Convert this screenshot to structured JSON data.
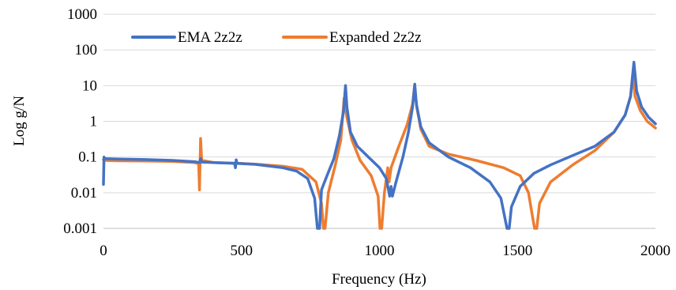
{
  "chart_data": {
    "type": "line",
    "title": "",
    "xlabel": "Frequency (Hz)",
    "ylabel": "Log g/N",
    "y_scale": "log",
    "xlim": [
      0,
      2000
    ],
    "ylim": [
      0.001,
      1000
    ],
    "x_ticks": [
      0,
      500,
      1000,
      1500,
      2000
    ],
    "x_tick_labels": [
      "0",
      "500",
      "1000",
      "1500",
      "2000"
    ],
    "y_ticks": [
      0.001,
      0.01,
      0.1,
      1,
      10,
      100,
      1000
    ],
    "y_tick_labels": [
      "0.001",
      "0.01",
      "0.1",
      "1",
      "10",
      "100",
      "1000"
    ],
    "grid": "horizontal",
    "legend_position": "top-left",
    "series": [
      {
        "name": "EMA 2z2z",
        "color": "#4472c4",
        "points": [
          [
            0,
            0.017
          ],
          [
            2,
            0.1
          ],
          [
            5,
            0.09
          ],
          [
            50,
            0.088
          ],
          [
            150,
            0.085
          ],
          [
            250,
            0.08
          ],
          [
            330,
            0.074
          ],
          [
            348,
            0.07
          ],
          [
            352,
            0.09
          ],
          [
            356,
            0.072
          ],
          [
            400,
            0.07
          ],
          [
            475,
            0.066
          ],
          [
            478,
            0.05
          ],
          [
            481,
            0.083
          ],
          [
            484,
            0.066
          ],
          [
            550,
            0.062
          ],
          [
            650,
            0.05
          ],
          [
            700,
            0.04
          ],
          [
            740,
            0.025
          ],
          [
            765,
            0.007
          ],
          [
            775,
            0.001
          ],
          [
            783,
            0.001
          ],
          [
            790,
            0.012
          ],
          [
            810,
            0.03
          ],
          [
            835,
            0.09
          ],
          [
            855,
            0.4
          ],
          [
            870,
            2
          ],
          [
            877,
            10
          ],
          [
            882,
            2.5
          ],
          [
            895,
            0.5
          ],
          [
            920,
            0.2
          ],
          [
            960,
            0.1
          ],
          [
            1000,
            0.05
          ],
          [
            1025,
            0.025
          ],
          [
            1037,
            0.008
          ],
          [
            1042,
            0.015
          ],
          [
            1047,
            0.008
          ],
          [
            1060,
            0.02
          ],
          [
            1085,
            0.1
          ],
          [
            1105,
            0.5
          ],
          [
            1120,
            2.5
          ],
          [
            1128,
            11
          ],
          [
            1134,
            3
          ],
          [
            1150,
            0.7
          ],
          [
            1180,
            0.25
          ],
          [
            1250,
            0.1
          ],
          [
            1330,
            0.05
          ],
          [
            1400,
            0.02
          ],
          [
            1440,
            0.007
          ],
          [
            1462,
            0.001
          ],
          [
            1470,
            0.001
          ],
          [
            1478,
            0.004
          ],
          [
            1510,
            0.015
          ],
          [
            1560,
            0.035
          ],
          [
            1620,
            0.06
          ],
          [
            1700,
            0.11
          ],
          [
            1780,
            0.2
          ],
          [
            1850,
            0.5
          ],
          [
            1890,
            1.5
          ],
          [
            1910,
            5
          ],
          [
            1922,
            45
          ],
          [
            1932,
            7
          ],
          [
            1950,
            2.5
          ],
          [
            1975,
            1.3
          ],
          [
            2000,
            0.85
          ]
        ]
      },
      {
        "name": "Expanded 2z2z",
        "color": "#ed7d31",
        "points": [
          [
            0,
            0.085
          ],
          [
            5,
            0.08
          ],
          [
            50,
            0.078
          ],
          [
            150,
            0.077
          ],
          [
            250,
            0.075
          ],
          [
            330,
            0.07
          ],
          [
            345,
            0.065
          ],
          [
            348,
            0.012
          ],
          [
            352,
            0.33
          ],
          [
            356,
            0.08
          ],
          [
            400,
            0.07
          ],
          [
            480,
            0.067
          ],
          [
            550,
            0.063
          ],
          [
            650,
            0.055
          ],
          [
            720,
            0.045
          ],
          [
            770,
            0.02
          ],
          [
            790,
            0.005
          ],
          [
            797,
            0.001
          ],
          [
            803,
            0.001
          ],
          [
            815,
            0.01
          ],
          [
            840,
            0.06
          ],
          [
            860,
            0.3
          ],
          [
            872,
            4.5
          ],
          [
            880,
            1.5
          ],
          [
            900,
            0.3
          ],
          [
            930,
            0.08
          ],
          [
            970,
            0.03
          ],
          [
            995,
            0.008
          ],
          [
            1002,
            0.001
          ],
          [
            1008,
            0.001
          ],
          [
            1018,
            0.01
          ],
          [
            1030,
            0.05
          ],
          [
            1035,
            0.02
          ],
          [
            1042,
            0.05
          ],
          [
            1070,
            0.2
          ],
          [
            1100,
            0.8
          ],
          [
            1120,
            3
          ],
          [
            1127,
            9.5
          ],
          [
            1135,
            2.5
          ],
          [
            1150,
            0.6
          ],
          [
            1180,
            0.2
          ],
          [
            1250,
            0.12
          ],
          [
            1350,
            0.08
          ],
          [
            1450,
            0.05
          ],
          [
            1510,
            0.03
          ],
          [
            1540,
            0.01
          ],
          [
            1555,
            0.002
          ],
          [
            1562,
            0.001
          ],
          [
            1570,
            0.001
          ],
          [
            1580,
            0.005
          ],
          [
            1620,
            0.02
          ],
          [
            1700,
            0.06
          ],
          [
            1780,
            0.15
          ],
          [
            1850,
            0.5
          ],
          [
            1890,
            1.5
          ],
          [
            1910,
            5
          ],
          [
            1918,
            22
          ],
          [
            1926,
            5
          ],
          [
            1945,
            2
          ],
          [
            1970,
            1
          ],
          [
            2000,
            0.65
          ]
        ]
      }
    ]
  }
}
